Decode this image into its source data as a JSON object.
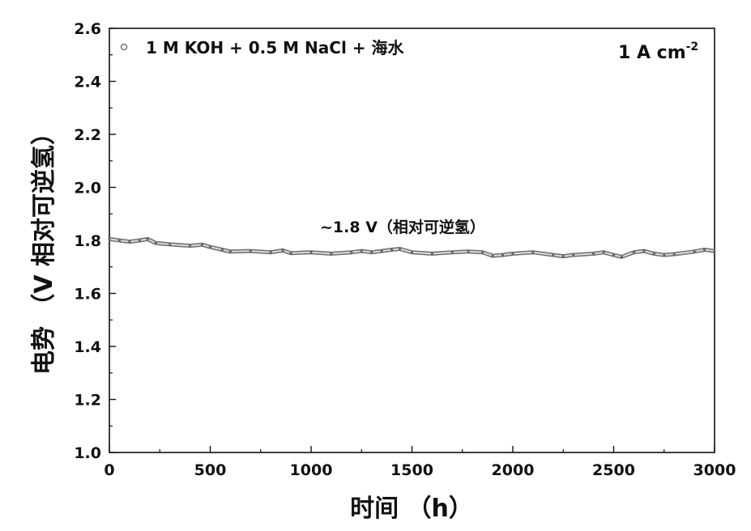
{
  "chart_data": {
    "type": "line",
    "xlabel": "时间 （h）",
    "ylabel": "电势 （V 相对可逆氢）",
    "xlim": [
      0,
      3000
    ],
    "ylim": [
      1.0,
      2.6
    ],
    "x_ticks": [
      "0",
      "500",
      "1000",
      "1500",
      "2000",
      "2500",
      "3000"
    ],
    "y_ticks": [
      "1.0",
      "1.2",
      "1.4",
      "1.6",
      "1.8",
      "2.0",
      "2.2",
      "2.4",
      "2.6"
    ],
    "legend": "1 M KOH + 0.5 M NaCl + 海水",
    "condition": {
      "prefix": "1 A cm",
      "superscript": "-2"
    },
    "annotation": "~1.8 V（相对可逆氢）",
    "series": [
      {
        "x": [
          0,
          50,
          100,
          150,
          190,
          230,
          300,
          400,
          460,
          500,
          560,
          600,
          700,
          800,
          860,
          900,
          1000,
          1100,
          1200,
          1250,
          1300,
          1350,
          1400,
          1440,
          1500,
          1600,
          1700,
          1780,
          1850,
          1900,
          1950,
          2000,
          2100,
          2200,
          2250,
          2300,
          2400,
          2450,
          2500,
          2540,
          2600,
          2650,
          2700,
          2750,
          2800,
          2900,
          2950,
          3000
        ],
        "y": [
          1.805,
          1.8,
          1.795,
          1.8,
          1.805,
          1.79,
          1.785,
          1.78,
          1.784,
          1.775,
          1.765,
          1.758,
          1.76,
          1.755,
          1.762,
          1.752,
          1.755,
          1.75,
          1.755,
          1.76,
          1.755,
          1.76,
          1.765,
          1.768,
          1.755,
          1.75,
          1.755,
          1.758,
          1.755,
          1.742,
          1.745,
          1.75,
          1.755,
          1.745,
          1.74,
          1.745,
          1.75,
          1.755,
          1.745,
          1.738,
          1.755,
          1.76,
          1.75,
          1.745,
          1.748,
          1.758,
          1.765,
          1.76
        ]
      }
    ],
    "line_color": "#707070",
    "grid": false
  }
}
